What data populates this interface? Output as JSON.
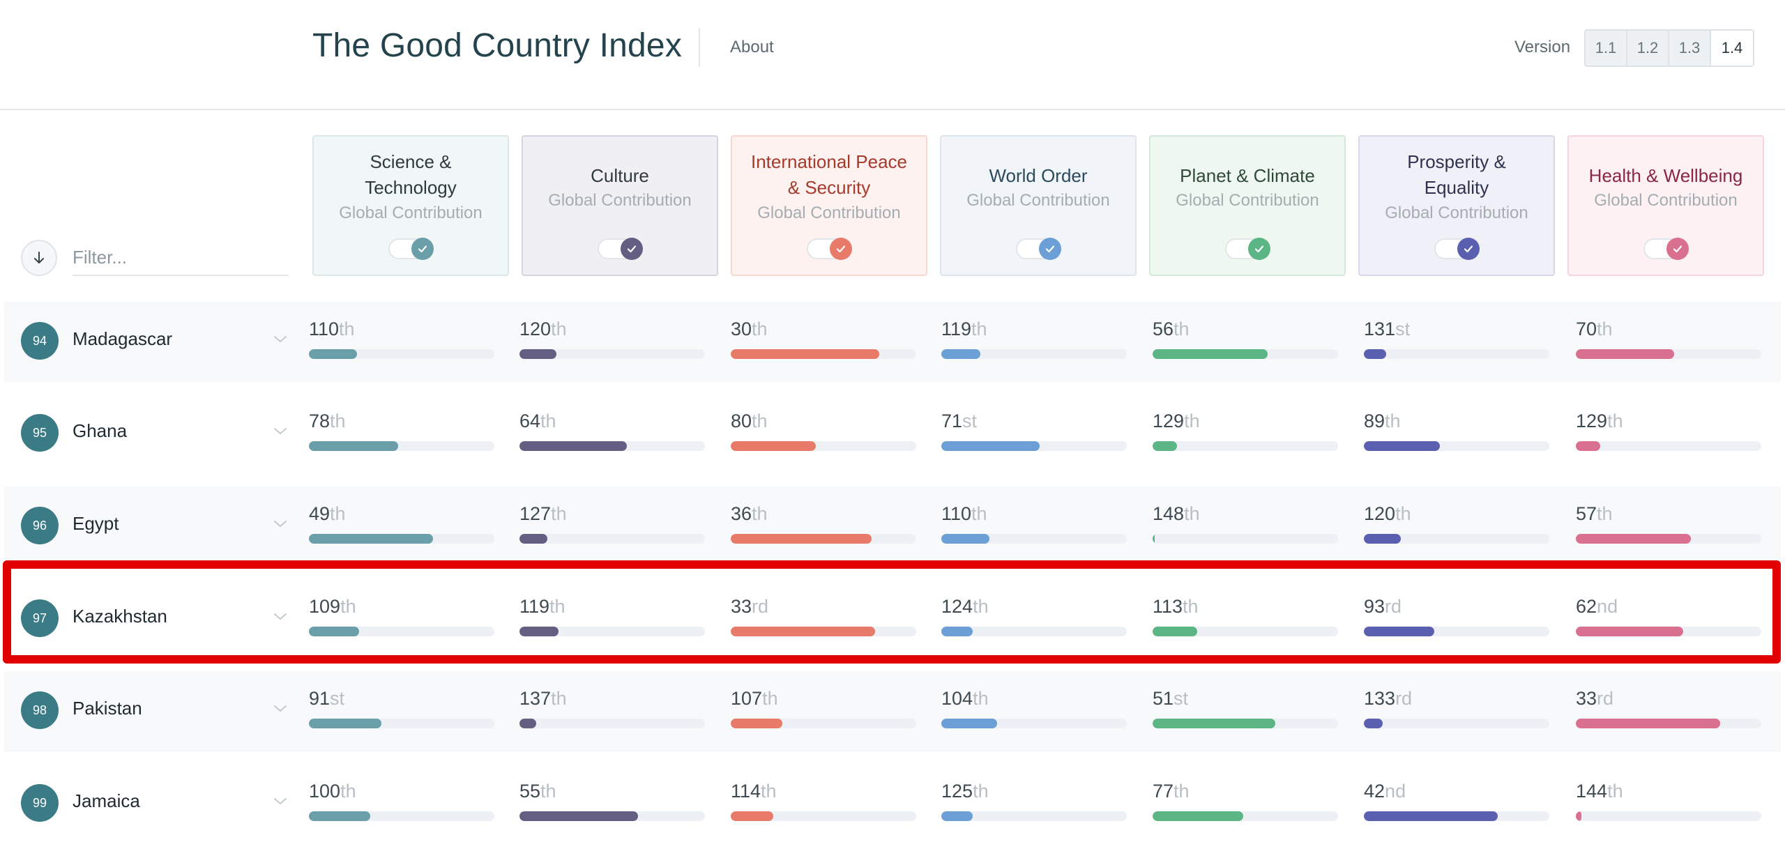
{
  "header": {
    "title": "The Good Country Index",
    "about": "About",
    "version_label": "Version",
    "versions": [
      "1.1",
      "1.2",
      "1.3",
      "1.4"
    ],
    "selected_version": "1.4"
  },
  "filter": {
    "placeholder": "Filter..."
  },
  "categories": [
    {
      "title": "Science & Technology",
      "subtitle": "Global Contribution",
      "color": "#6a9ea8",
      "bg": "#f1f6f6",
      "border": "#dbe6e6",
      "title_color": "#2e3a40"
    },
    {
      "title": "Culture",
      "subtitle": "Global Contribution",
      "color": "#645e82",
      "bg": "#f0eff4",
      "border": "#d6d4df",
      "title_color": "#2e3a40"
    },
    {
      "title": "International Peace & Security",
      "subtitle": "Global Contribution",
      "color": "#e87a6a",
      "bg": "#fdf2ef",
      "border": "#f6d8d1",
      "title_color": "#a63a2c"
    },
    {
      "title": "World Order",
      "subtitle": "Global Contribution",
      "color": "#6b9fd6",
      "bg": "#f1f5f9",
      "border": "#dce5ee",
      "title_color": "#2b4a5c"
    },
    {
      "title": "Planet & Climate",
      "subtitle": "Global Contribution",
      "color": "#5bb585",
      "bg": "#eff7f1",
      "border": "#d2e9da",
      "title_color": "#2f4a3b"
    },
    {
      "title": "Prosperity & Equality",
      "subtitle": "Global Contribution",
      "color": "#5b5fb0",
      "bg": "#f0f0f8",
      "border": "#d7d8ea",
      "title_color": "#2f3250"
    },
    {
      "title": "Health & Wellbeing",
      "subtitle": "Global Contribution",
      "color": "#d9708f",
      "bg": "#fdf1f4",
      "border": "#f4d4de",
      "title_color": "#8a2646"
    }
  ],
  "rows": [
    {
      "rank": "94",
      "country": "Madagascar",
      "cells": [
        {
          "num": "110",
          "suf": "th",
          "level": 0.26
        },
        {
          "num": "120",
          "suf": "th",
          "level": 0.2
        },
        {
          "num": "30",
          "suf": "th",
          "level": 0.8
        },
        {
          "num": "119",
          "suf": "th",
          "level": 0.21
        },
        {
          "num": "56",
          "suf": "th",
          "level": 0.62
        },
        {
          "num": "131",
          "suf": "st",
          "level": 0.12
        },
        {
          "num": "70",
          "suf": "th",
          "level": 0.53
        }
      ]
    },
    {
      "rank": "95",
      "country": "Ghana",
      "cells": [
        {
          "num": "78",
          "suf": "th",
          "level": 0.48
        },
        {
          "num": "64",
          "suf": "th",
          "level": 0.58
        },
        {
          "num": "80",
          "suf": "th",
          "level": 0.46
        },
        {
          "num": "71",
          "suf": "st",
          "level": 0.53
        },
        {
          "num": "129",
          "suf": "th",
          "level": 0.13
        },
        {
          "num": "89",
          "suf": "th",
          "level": 0.41
        },
        {
          "num": "129",
          "suf": "th",
          "level": 0.13
        }
      ]
    },
    {
      "rank": "96",
      "country": "Egypt",
      "cells": [
        {
          "num": "49",
          "suf": "th",
          "level": 0.67
        },
        {
          "num": "127",
          "suf": "th",
          "level": 0.15
        },
        {
          "num": "36",
          "suf": "th",
          "level": 0.76
        },
        {
          "num": "110",
          "suf": "th",
          "level": 0.26
        },
        {
          "num": "148",
          "suf": "th",
          "level": 0.01
        },
        {
          "num": "120",
          "suf": "th",
          "level": 0.2
        },
        {
          "num": "57",
          "suf": "th",
          "level": 0.62
        }
      ]
    },
    {
      "rank": "97",
      "country": "Kazakhstan",
      "cells": [
        {
          "num": "109",
          "suf": "th",
          "level": 0.27
        },
        {
          "num": "119",
          "suf": "th",
          "level": 0.21
        },
        {
          "num": "33",
          "suf": "rd",
          "level": 0.78
        },
        {
          "num": "124",
          "suf": "th",
          "level": 0.17
        },
        {
          "num": "113",
          "suf": "th",
          "level": 0.24
        },
        {
          "num": "93",
          "suf": "rd",
          "level": 0.38
        },
        {
          "num": "62",
          "suf": "nd",
          "level": 0.58
        }
      ]
    },
    {
      "rank": "98",
      "country": "Pakistan",
      "cells": [
        {
          "num": "91",
          "suf": "st",
          "level": 0.39
        },
        {
          "num": "137",
          "suf": "th",
          "level": 0.09
        },
        {
          "num": "107",
          "suf": "th",
          "level": 0.28
        },
        {
          "num": "104",
          "suf": "th",
          "level": 0.3
        },
        {
          "num": "51",
          "suf": "st",
          "level": 0.66
        },
        {
          "num": "133",
          "suf": "rd",
          "level": 0.1
        },
        {
          "num": "33",
          "suf": "rd",
          "level": 0.78
        }
      ]
    },
    {
      "rank": "99",
      "country": "Jamaica",
      "cells": [
        {
          "num": "100",
          "suf": "th",
          "level": 0.33
        },
        {
          "num": "55",
          "suf": "th",
          "level": 0.64
        },
        {
          "num": "114",
          "suf": "th",
          "level": 0.23
        },
        {
          "num": "125",
          "suf": "th",
          "level": 0.17
        },
        {
          "num": "77",
          "suf": "th",
          "level": 0.49
        },
        {
          "num": "42",
          "suf": "nd",
          "level": 0.72
        },
        {
          "num": "144",
          "suf": "th",
          "level": 0.03
        }
      ]
    }
  ],
  "highlighted_country": "Kazakhstan"
}
